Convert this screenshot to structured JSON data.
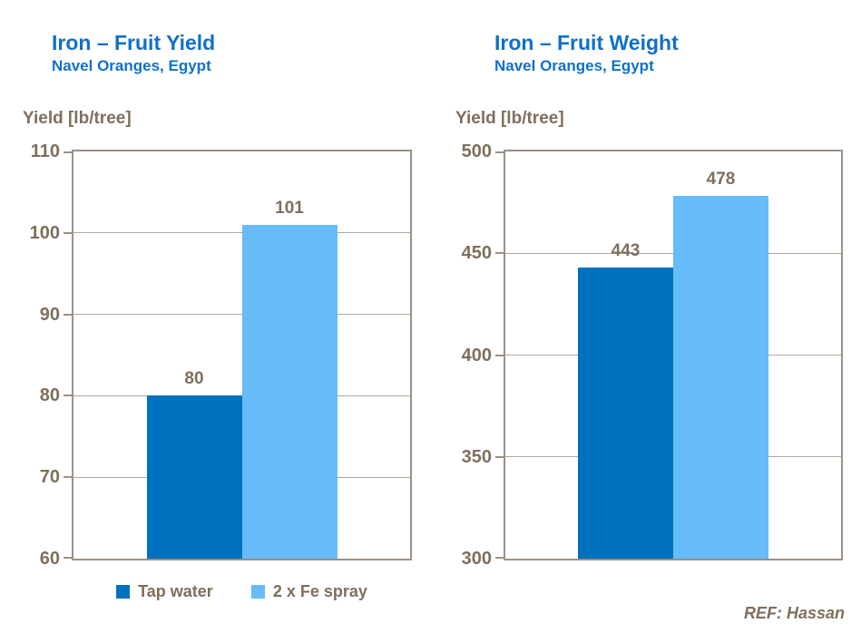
{
  "reference": "REF: Hassan",
  "colors": {
    "title_blue": "#1070C8",
    "dark_bar": "#0071BE",
    "light_bar": "#66BBF9",
    "axis_text": "#7E6F5D",
    "gridline": "#AFA79D",
    "border": "#9A9187"
  },
  "legend": [
    {
      "label": "Tap water",
      "color_key": "dark_bar"
    },
    {
      "label": "2 x Fe spray",
      "color_key": "light_bar"
    }
  ],
  "chart_data": [
    {
      "type": "bar",
      "title": "Iron – Fruit Yield",
      "subtitle": "Navel Oranges, Egypt",
      "ylabel": "Yield [lb/tree]",
      "categories": [
        "Tap water",
        "2 x Fe spray"
      ],
      "values": [
        80,
        101
      ],
      "data_labels": [
        "80",
        "101"
      ],
      "ylim": [
        60,
        110
      ],
      "yticks": [
        110,
        100,
        90,
        80,
        70,
        60
      ],
      "grid": true,
      "legend_position": "bottom"
    },
    {
      "type": "bar",
      "title": "Iron – Fruit Weight",
      "subtitle": "Navel Oranges, Egypt",
      "ylabel": "Yield [lb/tree]",
      "categories": [
        "Tap water",
        "2 x Fe spray"
      ],
      "values": [
        443,
        478
      ],
      "data_labels": [
        "443",
        "478"
      ],
      "ylim": [
        300,
        500
      ],
      "yticks": [
        500,
        450,
        400,
        350,
        300
      ],
      "grid": true,
      "legend_position": "none"
    }
  ]
}
